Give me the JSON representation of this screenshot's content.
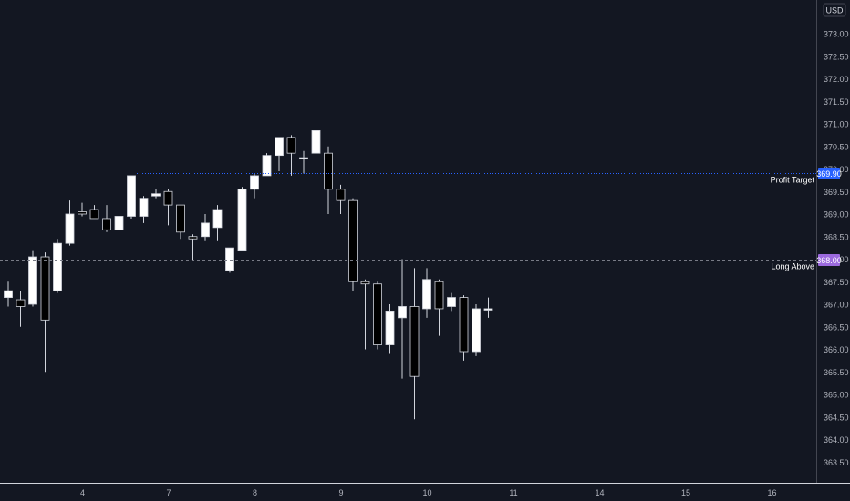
{
  "currency_label": "USD",
  "colors": {
    "background": "#131722",
    "candle_up": "#ffffff",
    "candle_down": "#000000",
    "candle_border": "#d1d4dc",
    "wick": "#d1d4dc",
    "profit_line": "#2962ff",
    "profit_badge": "#2962ff",
    "long_line": "#787b86",
    "long_badge": "#9c6ade",
    "axis_text": "#b2b5be",
    "axis_line": "#d1d4dc"
  },
  "chart_data": {
    "type": "candlestick",
    "title": "",
    "grid": false,
    "ylim": [
      363.25,
      373.45
    ],
    "y_ticks": [
      "373.00",
      "372.50",
      "372.00",
      "371.50",
      "371.00",
      "370.50",
      "370.00",
      "369.50",
      "369.00",
      "368.50",
      "368.00",
      "367.50",
      "367.00",
      "366.50",
      "366.00",
      "365.50",
      "365.00",
      "364.50",
      "364.00",
      "363.50"
    ],
    "x_ticks": [
      {
        "label": "4",
        "slot": 6.5
      },
      {
        "label": "7",
        "slot": 13.5
      },
      {
        "label": "8",
        "slot": 20.5
      },
      {
        "label": "9",
        "slot": 27.5
      },
      {
        "label": "10",
        "slot": 34.5
      },
      {
        "label": "11",
        "slot": 41.5
      },
      {
        "label": "14",
        "slot": 48.5
      },
      {
        "label": "15",
        "slot": 55.5
      },
      {
        "label": "16",
        "slot": 62.5
      }
    ],
    "candles": [
      {
        "o": 367.15,
        "h": 367.5,
        "l": 366.95,
        "c": 367.3
      },
      {
        "o": 367.1,
        "h": 367.3,
        "l": 366.5,
        "c": 366.95
      },
      {
        "o": 367.0,
        "h": 368.2,
        "l": 366.95,
        "c": 368.05
      },
      {
        "o": 368.05,
        "h": 368.15,
        "l": 365.5,
        "c": 366.65
      },
      {
        "o": 367.3,
        "h": 368.45,
        "l": 367.25,
        "c": 368.35
      },
      {
        "o": 368.35,
        "h": 369.3,
        "l": 368.3,
        "c": 369.0
      },
      {
        "o": 369.05,
        "h": 369.25,
        "l": 368.95,
        "c": 369.0
      },
      {
        "o": 369.1,
        "h": 369.2,
        "l": 368.9,
        "c": 368.9
      },
      {
        "o": 368.9,
        "h": 369.2,
        "l": 368.6,
        "c": 368.65
      },
      {
        "o": 368.65,
        "h": 369.1,
        "l": 368.55,
        "c": 368.95
      },
      {
        "o": 368.95,
        "h": 369.8,
        "l": 368.9,
        "c": 369.85
      },
      {
        "o": 368.95,
        "h": 369.4,
        "l": 368.8,
        "c": 369.35
      },
      {
        "o": 369.4,
        "h": 369.55,
        "l": 369.35,
        "c": 369.45
      },
      {
        "o": 369.5,
        "h": 369.55,
        "l": 368.75,
        "c": 369.2
      },
      {
        "o": 369.2,
        "h": 369.2,
        "l": 368.45,
        "c": 368.6
      },
      {
        "o": 368.5,
        "h": 368.55,
        "l": 367.95,
        "c": 368.45
      },
      {
        "o": 368.5,
        "h": 369.0,
        "l": 368.4,
        "c": 368.8
      },
      {
        "o": 368.7,
        "h": 369.2,
        "l": 368.4,
        "c": 369.1
      },
      {
        "o": 367.75,
        "h": 368.25,
        "l": 367.7,
        "c": 368.25
      },
      {
        "o": 368.2,
        "h": 369.6,
        "l": 368.2,
        "c": 369.55
      },
      {
        "o": 369.55,
        "h": 369.9,
        "l": 369.35,
        "c": 369.85
      },
      {
        "o": 369.85,
        "h": 370.35,
        "l": 369.85,
        "c": 370.3
      },
      {
        "o": 370.3,
        "h": 370.6,
        "l": 369.95,
        "c": 370.7
      },
      {
        "o": 370.7,
        "h": 370.75,
        "l": 369.85,
        "c": 370.35
      },
      {
        "o": 370.25,
        "h": 370.4,
        "l": 369.9,
        "c": 370.25
      },
      {
        "o": 370.35,
        "h": 371.05,
        "l": 369.45,
        "c": 370.85
      },
      {
        "o": 370.35,
        "h": 370.5,
        "l": 369.0,
        "c": 369.55
      },
      {
        "o": 369.55,
        "h": 369.65,
        "l": 369.0,
        "c": 369.3
      },
      {
        "o": 369.3,
        "h": 369.35,
        "l": 367.3,
        "c": 367.5
      },
      {
        "o": 367.5,
        "h": 367.55,
        "l": 366.0,
        "c": 367.45
      },
      {
        "o": 367.45,
        "h": 367.5,
        "l": 366.0,
        "c": 366.1
      },
      {
        "o": 366.1,
        "h": 367.0,
        "l": 365.9,
        "c": 366.85
      },
      {
        "o": 366.7,
        "h": 368.0,
        "l": 365.35,
        "c": 366.95
      },
      {
        "o": 366.95,
        "h": 367.8,
        "l": 364.45,
        "c": 365.4
      },
      {
        "o": 366.9,
        "h": 367.8,
        "l": 366.7,
        "c": 367.55
      },
      {
        "o": 367.5,
        "h": 367.55,
        "l": 366.3,
        "c": 366.9
      },
      {
        "o": 366.95,
        "h": 367.25,
        "l": 366.85,
        "c": 367.15
      },
      {
        "o": 367.15,
        "h": 367.2,
        "l": 365.75,
        "c": 365.95
      },
      {
        "o": 365.95,
        "h": 367.0,
        "l": 365.85,
        "c": 366.9
      },
      {
        "o": 366.9,
        "h": 367.15,
        "l": 366.7,
        "c": 366.9
      }
    ],
    "levels": [
      {
        "name": "Profit Target",
        "value": 369.9,
        "badge": "369.90",
        "style": "dotted"
      },
      {
        "name": "Long Above",
        "value": 368.0,
        "badge": "368.00",
        "style": "dashed"
      }
    ]
  }
}
